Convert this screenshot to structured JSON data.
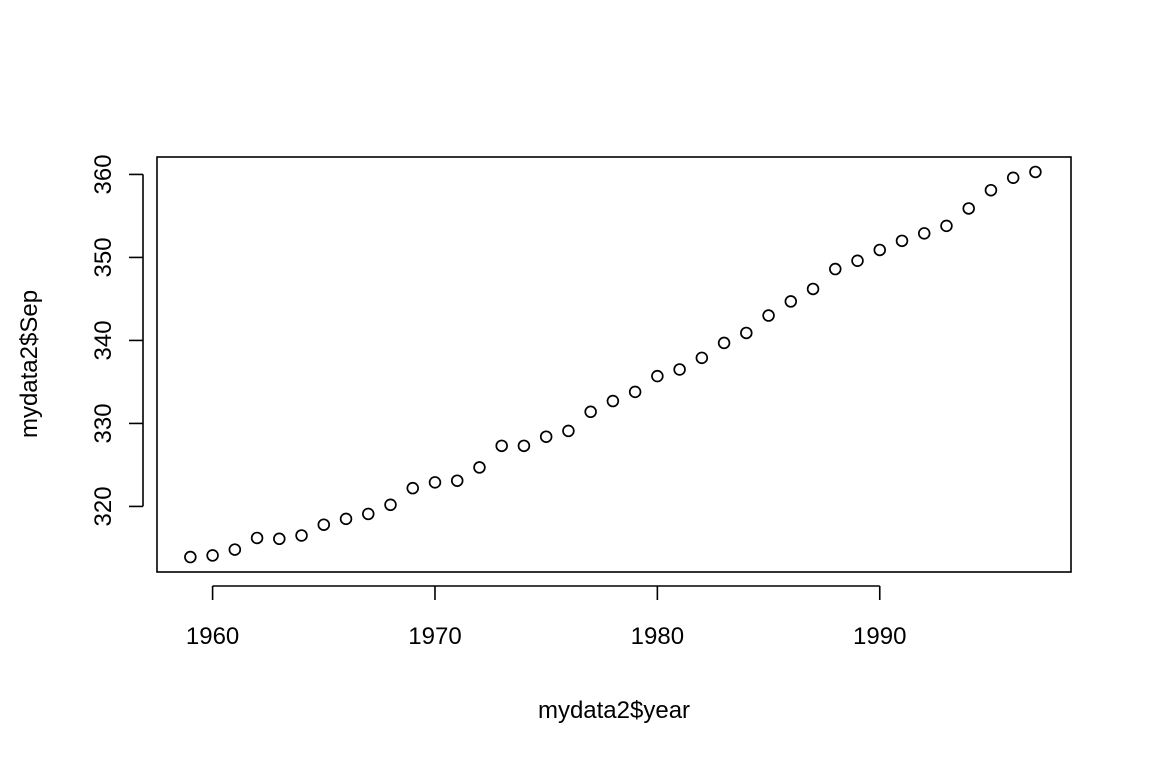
{
  "chart_data": {
    "type": "scatter",
    "title": "",
    "xlabel": "mydata2$year",
    "ylabel": "mydata2$Sep",
    "xlim": [
      1957.5,
      1998.6
    ],
    "ylim": [
      312.1,
      362.1
    ],
    "xticks": [
      1960,
      1970,
      1980,
      1990
    ],
    "yticks": [
      320,
      330,
      340,
      350,
      360
    ],
    "grid": false,
    "marker": "open-circle",
    "series": [
      {
        "x": [
          1959,
          1960,
          1961,
          1962,
          1963,
          1964,
          1965,
          1966,
          1967,
          1968,
          1969,
          1970,
          1971,
          1972,
          1973,
          1974,
          1975,
          1976,
          1977,
          1978,
          1979,
          1980,
          1981,
          1982,
          1983,
          1984,
          1985,
          1986,
          1987,
          1988,
          1989,
          1990,
          1991,
          1992,
          1993,
          1994,
          1995,
          1996,
          1997
        ],
        "y": [
          313.9,
          314.1,
          314.8,
          316.2,
          316.1,
          316.5,
          317.8,
          318.5,
          319.1,
          320.2,
          322.2,
          322.9,
          323.1,
          324.7,
          327.3,
          327.3,
          328.4,
          329.1,
          331.4,
          332.7,
          333.8,
          335.7,
          336.5,
          337.9,
          339.7,
          340.9,
          343.0,
          344.7,
          346.2,
          348.6,
          349.6,
          350.9,
          352.0,
          352.9,
          353.8,
          355.9,
          358.1,
          359.6,
          360.3
        ]
      }
    ]
  }
}
